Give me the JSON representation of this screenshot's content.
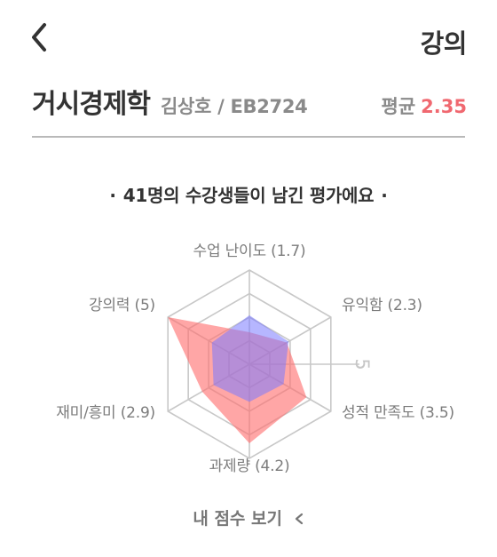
{
  "header": {
    "title": "강의"
  },
  "course": {
    "name": "거시경제학",
    "meta": "김상호 / EB2724",
    "avg_label": "평균",
    "avg_value": "2.35"
  },
  "summary": {
    "dot": "·",
    "text": "41명의 수강생들이 남긴 평가에요"
  },
  "chart_data": {
    "type": "radar",
    "max": 5,
    "axis_tick_label": "5",
    "axes": [
      {
        "label": "수업 난이도 (1.7)",
        "value": 1.7
      },
      {
        "label": "유익함 (2.3)",
        "value": 2.3
      },
      {
        "label": "성적 만족도 (3.5)",
        "value": 3.5
      },
      {
        "label": "과제량 (4.2)",
        "value": 4.2
      },
      {
        "label": "재미/흥미 (2.9)",
        "value": 2.9
      },
      {
        "label": "강의력 (5)",
        "value": 5
      }
    ],
    "series": [
      {
        "values": [
          1.7,
          2.3,
          3.5,
          4.2,
          2.9,
          5
        ],
        "color": "#ff6f6f"
      },
      {
        "values": [
          2.6,
          2.4,
          2.1,
          2.0,
          2.2,
          2.3
        ],
        "color": "#7a7aff"
      }
    ]
  },
  "footer": {
    "my_score_label": "내 점수 보기"
  },
  "colors": {
    "accent": "#f06870",
    "text_dark": "#333333",
    "text_muted": "#8a8a8a"
  }
}
